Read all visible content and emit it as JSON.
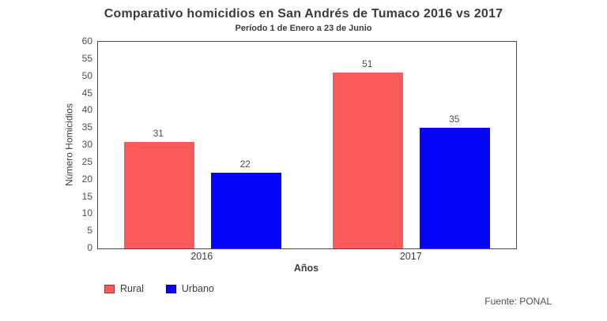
{
  "figure": {
    "title": "Comparativo homicidios en San Andrés de Tumaco 2016 vs 2017",
    "subtitle": "Período 1 de Enero a 23 de Junio",
    "source": "Fuente: PONAL"
  },
  "chart_data": {
    "type": "bar",
    "title": "Comparativo homicidios en San Andrés de Tumaco 2016 vs 2017",
    "subtitle": "Período 1 de Enero a 23 de Junio",
    "categories": [
      "2016",
      "2017"
    ],
    "series": [
      {
        "name": "Rural",
        "values": [
          31,
          51
        ],
        "color": "#fb5a5a",
        "border_color": "#9e3434"
      },
      {
        "name": "Urbano",
        "values": [
          22,
          35
        ],
        "color": "#0505fa",
        "border_color": "#000080"
      }
    ],
    "xlabel": "Años",
    "ylabel": "Número Homicidios",
    "ylim": [
      0,
      60
    ],
    "ytick_step": 5,
    "grid": false,
    "value_labels": true,
    "legend_position": "bottom-left"
  }
}
